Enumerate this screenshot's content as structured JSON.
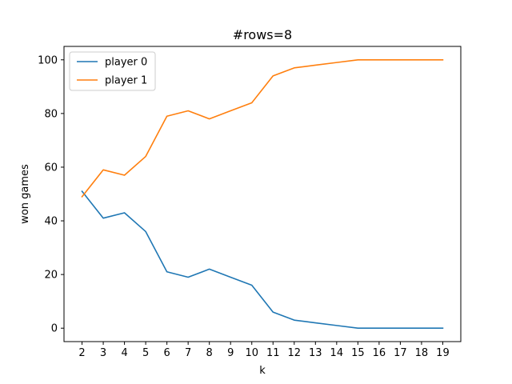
{
  "chart_data": {
    "type": "line",
    "title": "#rows=8",
    "xlabel": "k",
    "ylabel": "won games",
    "x": [
      2,
      3,
      4,
      5,
      6,
      7,
      8,
      9,
      10,
      11,
      12,
      13,
      14,
      15,
      16,
      17,
      18,
      19
    ],
    "xlim": [
      1.15,
      19.85
    ],
    "ylim": [
      -5,
      105
    ],
    "yticks": [
      0,
      20,
      40,
      60,
      80,
      100
    ],
    "grid": false,
    "legend": "top-left",
    "series": [
      {
        "name": "player 0",
        "color": "#1f77b4",
        "values": [
          51,
          41,
          43,
          36,
          21,
          19,
          22,
          19,
          16,
          6,
          3,
          2,
          1,
          0,
          0,
          0,
          0,
          0
        ]
      },
      {
        "name": "player 1",
        "color": "#ff7f0e",
        "values": [
          49,
          59,
          57,
          64,
          79,
          81,
          78,
          81,
          84,
          94,
          97,
          98,
          99,
          100,
          100,
          100,
          100,
          100
        ]
      }
    ]
  }
}
